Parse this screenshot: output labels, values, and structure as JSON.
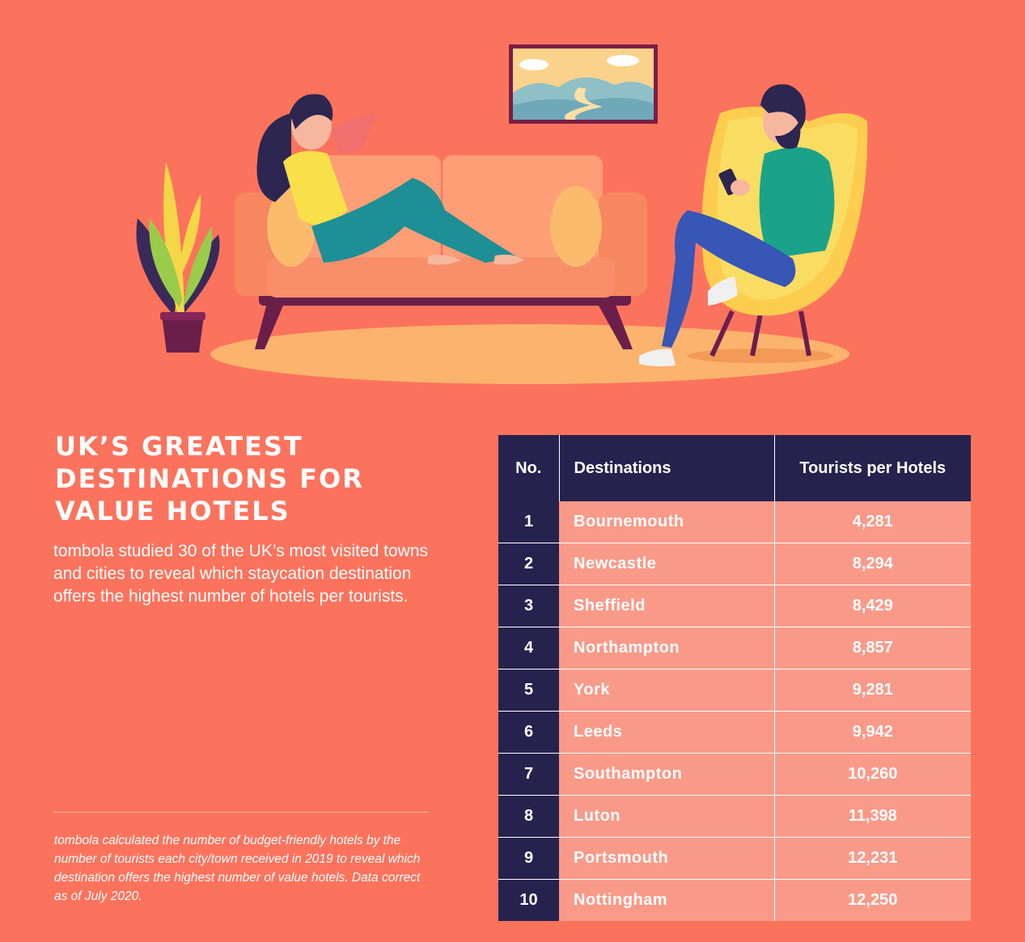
{
  "title_lines": [
    "UK’s greatest",
    "destinations for",
    "value hotels"
  ],
  "intro": "tombola studied 30 of the UK’s most visited towns and cities to reveal which staycation destination offers the highest number of hotels per tourists.",
  "footnote": "tombola calculated the number of budget-friendly hotels by the number of tourists each city/town received in 2019 to reveal which destination offers the highest number of value hotels. Data correct as of July 2020.",
  "colors": {
    "background": "#fc735d",
    "table_header": "#26224e",
    "table_cell": "#f99a89",
    "text": "#ffffff"
  },
  "chart_data": {
    "type": "table",
    "columns": [
      "No.",
      "Destinations",
      "Tourists per Hotels"
    ],
    "rows": [
      {
        "no": "1",
        "destination": "Bournemouth",
        "value": "4,281"
      },
      {
        "no": "2",
        "destination": "Newcastle",
        "value": "8,294"
      },
      {
        "no": "3",
        "destination": "Sheffield",
        "value": "8,429"
      },
      {
        "no": "4",
        "destination": "Northampton",
        "value": "8,857"
      },
      {
        "no": "5",
        "destination": "York",
        "value": "9,281"
      },
      {
        "no": "6",
        "destination": "Leeds",
        "value": "9,942"
      },
      {
        "no": "7",
        "destination": "Southampton",
        "value": "10,260"
      },
      {
        "no": "8",
        "destination": "Luton",
        "value": "11,398"
      },
      {
        "no": "9",
        "destination": "Portsmouth",
        "value": "12,231"
      },
      {
        "no": "10",
        "destination": "Nottingham",
        "value": "12,250"
      }
    ]
  }
}
